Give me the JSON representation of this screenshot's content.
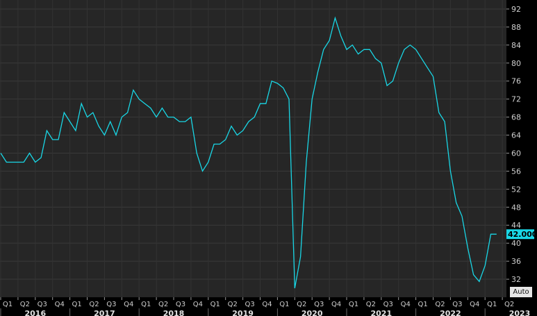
{
  "controls": {
    "auto_label": "Auto"
  },
  "colors": {
    "line": "#19d7e6",
    "plot_bg": "#262626",
    "grid": "#3a3a3a",
    "axis_bg": "#000000",
    "last_value_bg": "#19d7e6"
  },
  "chart_data": {
    "type": "line",
    "title": "",
    "xlabel": "",
    "ylabel": "",
    "ylim": [
      28,
      94
    ],
    "y_ticks": [
      32,
      36,
      40,
      44,
      48,
      52,
      56,
      60,
      64,
      68,
      72,
      76,
      80,
      84,
      88,
      92
    ],
    "grid": true,
    "last_value_label": "42.000",
    "last_value": 42,
    "x_axis": {
      "quarter_labels": [
        "Q1",
        "Q2",
        "Q3",
        "Q4",
        "Q1",
        "Q2",
        "Q3",
        "Q4",
        "Q1",
        "Q2",
        "Q3",
        "Q4",
        "Q1",
        "Q2",
        "Q3",
        "Q4",
        "Q1",
        "Q2",
        "Q3",
        "Q4",
        "Q1",
        "Q2",
        "Q3",
        "Q4",
        "Q1",
        "Q2",
        "Q3",
        "Q4",
        "Q1",
        "Q2"
      ],
      "year_labels": [
        "2016",
        "2017",
        "2018",
        "2019",
        "2020",
        "2021",
        "2022",
        "2023"
      ]
    },
    "series": [
      {
        "name": "",
        "x_months_from_jan2016": [
          0,
          1,
          2,
          3,
          4,
          5,
          6,
          7,
          8,
          9,
          10,
          11,
          12,
          13,
          14,
          15,
          16,
          17,
          18,
          19,
          20,
          21,
          22,
          23,
          24,
          25,
          26,
          27,
          28,
          29,
          30,
          31,
          32,
          33,
          34,
          35,
          36,
          37,
          38,
          39,
          40,
          41,
          42,
          43,
          44,
          45,
          46,
          47,
          48,
          49,
          50,
          51,
          52,
          53,
          54,
          55,
          56,
          57,
          58,
          59,
          60,
          61,
          62,
          63,
          64,
          65,
          66,
          67,
          68,
          69,
          70,
          71,
          72,
          73,
          74,
          75,
          76,
          77,
          78,
          79,
          80,
          81,
          82,
          83,
          84,
          85,
          86
        ],
        "values": [
          60,
          58,
          58,
          58,
          58,
          60,
          58,
          59,
          65,
          63,
          63,
          69,
          67,
          65,
          71,
          68,
          69,
          66,
          64,
          67,
          64,
          68,
          69,
          74,
          72,
          71,
          70,
          68,
          70,
          68,
          68,
          67,
          67,
          68,
          60,
          56,
          58,
          62,
          62,
          63,
          66,
          64,
          65,
          67,
          68,
          71,
          71,
          76,
          75.5,
          74.5,
          72,
          30,
          37,
          58,
          72,
          78,
          83,
          85,
          90,
          86,
          83,
          84,
          82,
          83,
          83,
          81,
          80,
          75,
          76,
          80,
          83,
          84,
          83,
          81,
          79,
          77,
          69,
          67,
          56,
          49,
          46,
          39,
          33,
          31.5,
          35,
          42,
          42
        ]
      }
    ]
  }
}
